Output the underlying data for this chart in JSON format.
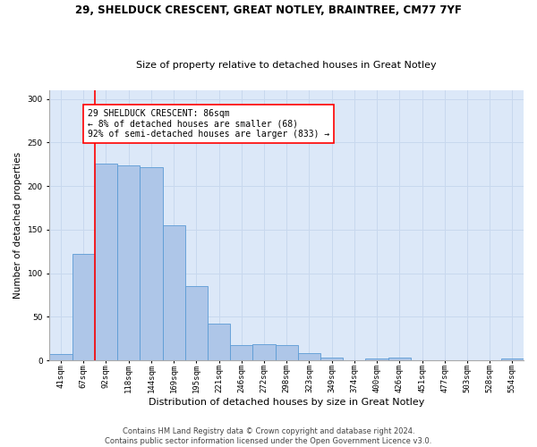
{
  "title": "29, SHELDUCK CRESCENT, GREAT NOTLEY, BRAINTREE, CM77 7YF",
  "subtitle": "Size of property relative to detached houses in Great Notley",
  "xlabel": "Distribution of detached houses by size in Great Notley",
  "ylabel": "Number of detached properties",
  "categories": [
    "41sqm",
    "67sqm",
    "92sqm",
    "118sqm",
    "144sqm",
    "169sqm",
    "195sqm",
    "221sqm",
    "246sqm",
    "272sqm",
    "298sqm",
    "323sqm",
    "349sqm",
    "374sqm",
    "400sqm",
    "426sqm",
    "451sqm",
    "477sqm",
    "503sqm",
    "528sqm",
    "554sqm"
  ],
  "values": [
    7,
    122,
    226,
    224,
    222,
    155,
    85,
    42,
    17,
    18,
    17,
    8,
    3,
    0,
    2,
    3,
    0,
    0,
    0,
    0,
    2
  ],
  "bar_color": "#aec6e8",
  "bar_edge_color": "#5b9bd5",
  "grid_color": "#c8d8ee",
  "bg_color": "#dce8f8",
  "vline_x": 1.5,
  "vline_color": "red",
  "annotation_text": "29 SHELDUCK CRESCENT: 86sqm\n← 8% of detached houses are smaller (68)\n92% of semi-detached houses are larger (833) →",
  "annotation_box_color": "white",
  "annotation_box_edge": "red",
  "footnote": "Contains HM Land Registry data © Crown copyright and database right 2024.\nContains public sector information licensed under the Open Government Licence v3.0.",
  "ylim": [
    0,
    310
  ],
  "yticks": [
    0,
    50,
    100,
    150,
    200,
    250,
    300
  ],
  "title_fontsize": 8.5,
  "subtitle_fontsize": 8,
  "ylabel_fontsize": 7.5,
  "xlabel_fontsize": 8,
  "tick_fontsize": 6.5,
  "annotation_fontsize": 7,
  "footnote_fontsize": 6
}
